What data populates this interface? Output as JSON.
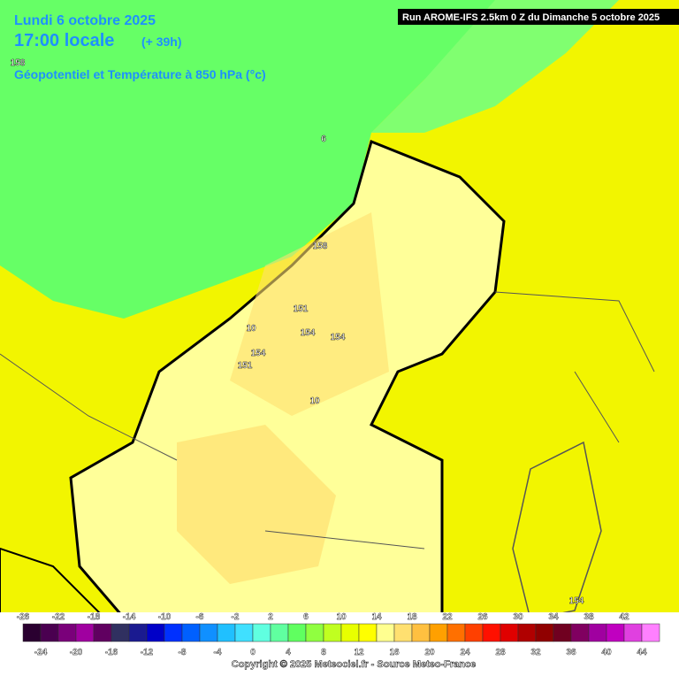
{
  "header": {
    "date": "Lundi 6 octobre 2025",
    "time": "17:00 locale",
    "lead": "(+ 39h)",
    "field": "Géopotentiel et Température à 850 hPa (°c)"
  },
  "run": "Run AROME-IFS 2.5km 0 Z du Dimanche 5 octobre 2025",
  "contour_labels": [
    "158",
    "6",
    "158",
    "151",
    "154",
    "154",
    "10",
    "154",
    "151",
    "10",
    "154"
  ],
  "scale": {
    "top_labels": [
      -26,
      -22,
      -18,
      -14,
      -10,
      -6,
      -2,
      2,
      6,
      10,
      14,
      18,
      22,
      26,
      30,
      34,
      38,
      42
    ],
    "bottom_labels": [
      -24,
      -20,
      -16,
      -12,
      -8,
      -4,
      0,
      4,
      8,
      12,
      16,
      20,
      24,
      28,
      32,
      36,
      40,
      44
    ],
    "colors": [
      "#2a0030",
      "#4a0050",
      "#7a007a",
      "#a000a0",
      "#600060",
      "#303060",
      "#1a1a90",
      "#0000c8",
      "#0030ff",
      "#0060ff",
      "#1090ff",
      "#20c0ff",
      "#40e0ff",
      "#60ffe0",
      "#60ffa0",
      "#60ff60",
      "#90ff40",
      "#c0ff20",
      "#e8ff00",
      "#ffff00",
      "#ffff90",
      "#ffe070",
      "#ffc040",
      "#ffa000",
      "#ff7000",
      "#ff4000",
      "#ff1000",
      "#e00000",
      "#b00000",
      "#900000",
      "#700020",
      "#800060",
      "#a000a0",
      "#c000c0",
      "#e040e0",
      "#ff80ff"
    ]
  },
  "copyright": "Copyright © 2025 Meteociel.fr - Source Meteo-France"
}
